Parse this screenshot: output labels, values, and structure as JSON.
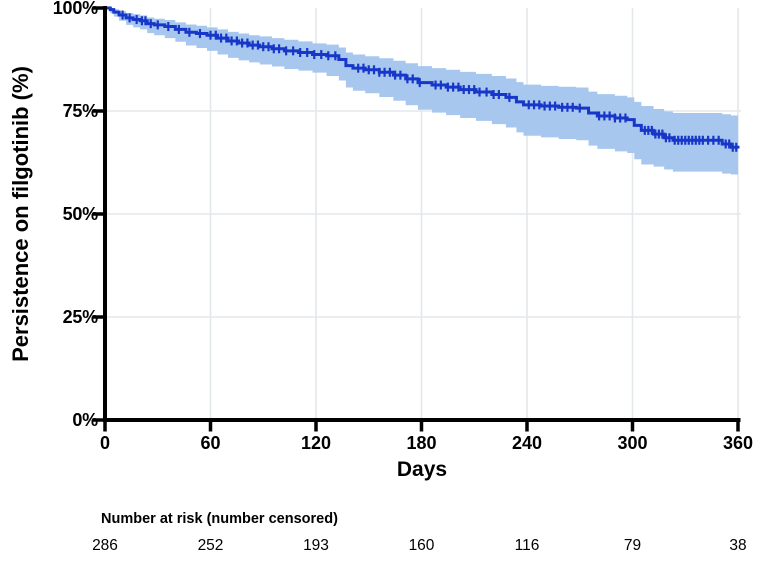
{
  "figure": {
    "y_axis_title": "Persistence on filgotinib (%)",
    "x_axis_title": "Days",
    "y_tick_labels": [
      "100%",
      "75%",
      "50%",
      "25%",
      "0%"
    ],
    "x_tick_labels": [
      "0",
      "60",
      "120",
      "180",
      "240",
      "300",
      "360"
    ],
    "risk_table": {
      "header": "Number at risk (number censored)",
      "values": [
        "286",
        "252",
        "193",
        "160",
        "116",
        "79",
        "38"
      ]
    }
  },
  "chart_data": {
    "type": "line",
    "subtype": "kaplan-meier-step-with-ci-band",
    "title": "",
    "xlabel": "Days",
    "ylabel": "Persistence on filgotinib (%)",
    "xlim": [
      0,
      360
    ],
    "ylim": [
      0,
      100
    ],
    "x_ticks": [
      0,
      60,
      120,
      180,
      240,
      300,
      360
    ],
    "y_ticks": [
      0,
      25,
      50,
      75,
      100
    ],
    "grid": true,
    "legend": false,
    "series": [
      {
        "name": "Persistence on filgotinib",
        "time": [
          0,
          3,
          5,
          8,
          12,
          16,
          20,
          24,
          28,
          34,
          40,
          46,
          52,
          58,
          64,
          70,
          76,
          82,
          88,
          95,
          102,
          110,
          118,
          126,
          133,
          137,
          141,
          148,
          156,
          164,
          171,
          178,
          186,
          194,
          202,
          211,
          220,
          228,
          234,
          238,
          248,
          258,
          268,
          275,
          280,
          290,
          297,
          301,
          305,
          312,
          318,
          323,
          351,
          356,
          360
        ],
        "survival_pct": [
          100,
          99.6,
          99,
          98.3,
          97.6,
          97.2,
          96.9,
          96.2,
          95.9,
          95.5,
          94.8,
          94.1,
          93.8,
          93.4,
          92.7,
          92,
          91.5,
          91,
          90.6,
          90.1,
          89.6,
          89.2,
          88.7,
          88.4,
          87.5,
          86,
          85.4,
          85,
          84.4,
          83.7,
          82.8,
          81.9,
          81.3,
          80.8,
          80.2,
          79.6,
          79,
          78.3,
          77.2,
          76.5,
          76.2,
          75.9,
          75.7,
          74.5,
          73.8,
          73.3,
          72.9,
          71.5,
          70.3,
          69.4,
          68.5,
          67.9,
          67,
          66.2,
          65.9
        ],
        "ci_upper_pct": [
          100,
          100,
          99.7,
          99.2,
          98.8,
          98.5,
          98.2,
          97.7,
          97.4,
          97.1,
          96.5,
          96,
          95.7,
          95.3,
          94.8,
          94.2,
          93.8,
          93.4,
          93.1,
          92.7,
          92.3,
          91.9,
          91.4,
          91.1,
          90.4,
          89.2,
          88.7,
          88.3,
          87.8,
          87.2,
          86.6,
          85.9,
          85.4,
          85,
          84.5,
          84,
          83.5,
          82.9,
          82,
          81.4,
          81.1,
          80.9,
          80.7,
          79.7,
          79.1,
          78.7,
          78.3,
          77.2,
          76.2,
          75.5,
          74.9,
          74.5,
          74.2,
          73.9,
          73.8
        ],
        "ci_lower_pct": [
          100,
          98.7,
          97.9,
          96.9,
          95.9,
          95.3,
          94.8,
          93.9,
          93.4,
          92.7,
          91.8,
          90.9,
          90.3,
          89.6,
          88.7,
          87.9,
          87.3,
          86.8,
          86.3,
          85.8,
          85.2,
          84.8,
          84.3,
          83.5,
          82.4,
          80.7,
          79.9,
          79.3,
          78.4,
          77.5,
          76.4,
          75.3,
          74.6,
          74,
          73.3,
          72.6,
          71.8,
          71,
          69.8,
          69,
          68.6,
          68.2,
          67.9,
          66.6,
          65.8,
          65.2,
          64.8,
          63.3,
          62,
          61.5,
          60.8,
          60.3,
          59.8,
          59.6,
          59.4
        ],
        "censor_times": [
          10,
          14,
          18,
          21,
          23,
          26,
          30,
          36,
          42,
          48,
          54,
          60,
          63,
          66,
          69,
          72,
          75,
          78,
          81,
          84,
          87,
          90,
          93,
          96,
          99,
          103,
          107,
          111,
          115,
          119,
          123,
          127,
          131,
          144,
          147,
          150,
          153,
          156,
          159,
          162,
          165,
          168,
          172,
          175,
          179,
          188,
          191,
          195,
          198,
          201,
          204,
          207,
          210,
          213,
          217,
          221,
          224,
          230,
          241,
          244,
          247,
          250,
          253,
          256,
          260,
          263,
          266,
          270,
          281,
          284,
          287,
          290,
          293,
          296,
          307,
          309,
          311,
          313,
          315,
          317,
          319,
          321,
          324,
          326,
          328,
          330,
          332,
          334,
          336,
          338,
          340,
          343,
          346,
          349,
          353,
          355,
          357,
          359
        ]
      }
    ],
    "number_at_risk": {
      "label": "Number at risk (number censored)",
      "times": [
        0,
        60,
        120,
        180,
        240,
        300,
        360
      ],
      "values": [
        286,
        252,
        193,
        160,
        116,
        79,
        38
      ]
    },
    "colors": {
      "line": "#1737c9",
      "band": "#a8c7ef",
      "axis": "#000000",
      "grid": "#e3e8eb",
      "text": "#000000"
    }
  }
}
